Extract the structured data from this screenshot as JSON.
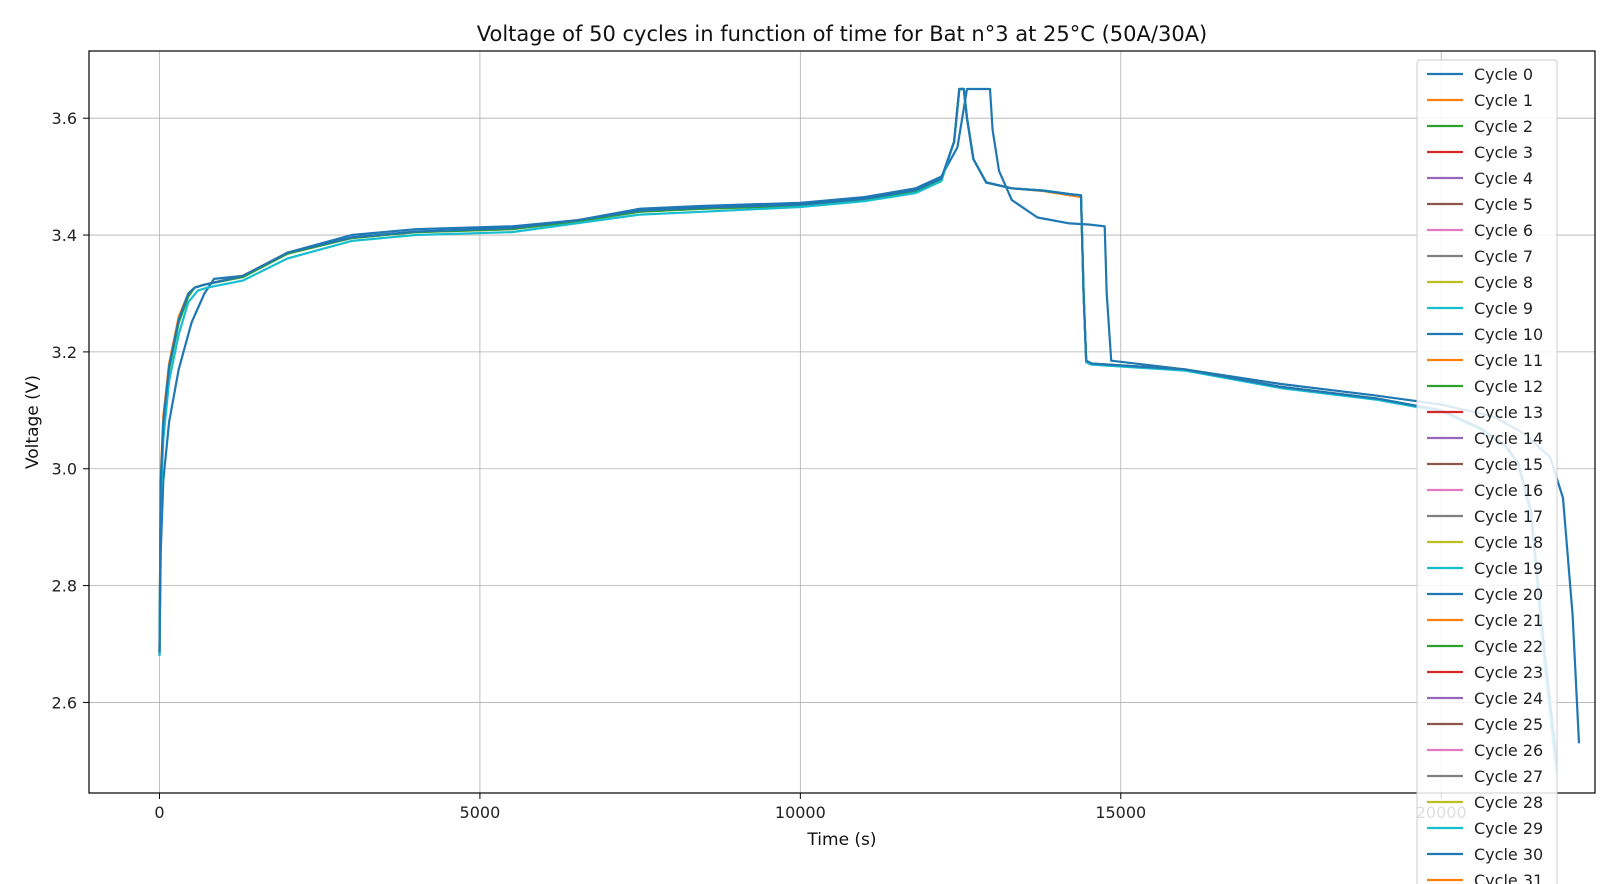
{
  "chart_data": {
    "type": "line",
    "title": "Voltage of 50 cycles in function of time for Bat n°3 at 25°C (50A/30A)",
    "xlabel": "Time (s)",
    "ylabel": "Voltage (V)",
    "xlim": [
      -1100,
      22400
    ],
    "ylim": [
      2.445,
      3.715
    ],
    "xticks": [
      0,
      5000,
      10000,
      15000,
      20000
    ],
    "xtick_labels": [
      "0",
      "5000",
      "10000",
      "15000",
      "20000"
    ],
    "yticks": [
      2.6,
      2.8,
      3.0,
      3.2,
      3.4,
      3.6
    ],
    "ytick_labels": [
      "2.6",
      "2.8",
      "3.0",
      "3.2",
      "3.4",
      "3.6"
    ],
    "grid": true,
    "legend_position": "upper-right",
    "palette": [
      "#1f77b4",
      "#ff7f0e",
      "#2ca02c",
      "#d62728",
      "#9467bd",
      "#8c564b",
      "#e377c2",
      "#7f7f7f",
      "#bcbd22",
      "#17becf"
    ],
    "legend_entries": [
      "Cycle 0",
      "Cycle 1",
      "Cycle 2",
      "Cycle 3",
      "Cycle 4",
      "Cycle 5",
      "Cycle 6",
      "Cycle 7",
      "Cycle 8",
      "Cycle 9",
      "Cycle 10",
      "Cycle 11",
      "Cycle 12",
      "Cycle 13",
      "Cycle 14",
      "Cycle 15",
      "Cycle 16",
      "Cycle 17",
      "Cycle 18",
      "Cycle 19",
      "Cycle 20",
      "Cycle 21",
      "Cycle 22",
      "Cycle 23",
      "Cycle 24",
      "Cycle 25",
      "Cycle 26",
      "Cycle 27",
      "Cycle 28",
      "Cycle 29",
      "Cycle 30",
      "Cycle 31"
    ],
    "series": [
      {
        "name": "Cycle 0",
        "color": "#1f77b4",
        "x": [
          0,
          20,
          60,
          150,
          300,
          500,
          700,
          850,
          1300,
          2000,
          3000,
          4000,
          5500,
          6500,
          7500,
          8500,
          10000,
          11000,
          11800,
          12200,
          12450,
          12600,
          12700,
          12800,
          12960,
          13000,
          13100,
          13300,
          13700,
          14200,
          14500,
          14750,
          14780,
          14850,
          16000,
          17500,
          19000,
          20000,
          20800,
          21300,
          21500,
          21700,
          21900,
          22050,
          22150
        ],
        "y": [
          2.68,
          2.86,
          2.98,
          3.08,
          3.17,
          3.25,
          3.3,
          3.325,
          3.33,
          3.37,
          3.4,
          3.41,
          3.415,
          3.425,
          3.445,
          3.45,
          3.455,
          3.465,
          3.48,
          3.5,
          3.55,
          3.65,
          3.65,
          3.65,
          3.65,
          3.58,
          3.51,
          3.46,
          3.43,
          3.42,
          3.418,
          3.415,
          3.3,
          3.185,
          3.17,
          3.145,
          3.125,
          3.11,
          3.09,
          3.06,
          3.04,
          3.02,
          2.95,
          2.75,
          2.53
        ]
      },
      {
        "name": "Cycle 1",
        "color": "#ff7f0e",
        "x": [
          0,
          20,
          60,
          150,
          300,
          450,
          550,
          700,
          1300,
          2000,
          3000,
          4000,
          5500,
          6500,
          7500,
          8500,
          10000,
          11000,
          11800,
          12200,
          12400,
          12480,
          12550,
          12600,
          12700,
          12900,
          13300,
          13800,
          14200,
          14380,
          14420,
          14460,
          14550,
          16000,
          17500,
          19000,
          20000,
          20600,
          21000,
          21200,
          21400,
          21600,
          21800
        ],
        "y": [
          2.69,
          2.99,
          3.09,
          3.18,
          3.26,
          3.3,
          3.31,
          3.315,
          3.33,
          3.37,
          3.395,
          3.405,
          3.41,
          3.425,
          3.44,
          3.445,
          3.45,
          3.46,
          3.475,
          3.495,
          3.56,
          3.65,
          3.65,
          3.6,
          3.53,
          3.49,
          3.48,
          3.475,
          3.468,
          3.465,
          3.3,
          3.185,
          3.18,
          3.17,
          3.14,
          3.12,
          3.1,
          3.07,
          3.04,
          3.01,
          2.93,
          2.7,
          2.5
        ]
      },
      {
        "name": "Cycle 2",
        "color": "#2ca02c",
        "x": [
          0,
          20,
          60,
          150,
          300,
          450,
          550,
          700,
          1300,
          2000,
          3000,
          4000,
          5500,
          6500,
          7500,
          8500,
          10000,
          11000,
          11800,
          12200,
          12400,
          12480,
          12550,
          12600,
          12700,
          12900,
          13300,
          13800,
          14200,
          14380,
          14420,
          14460,
          14550,
          16000,
          17500,
          19000,
          20000,
          20600,
          21000,
          21200,
          21400,
          21600,
          21800
        ],
        "y": [
          2.685,
          2.97,
          3.07,
          3.17,
          3.25,
          3.295,
          3.31,
          3.315,
          3.328,
          3.368,
          3.395,
          3.405,
          3.41,
          3.423,
          3.44,
          3.445,
          3.45,
          3.46,
          3.475,
          3.495,
          3.56,
          3.65,
          3.65,
          3.6,
          3.53,
          3.49,
          3.48,
          3.476,
          3.47,
          3.468,
          3.3,
          3.185,
          3.18,
          3.17,
          3.14,
          3.12,
          3.1,
          3.07,
          3.04,
          3.01,
          2.93,
          2.7,
          2.5
        ]
      },
      {
        "name": "Cycle 9",
        "color": "#17becf",
        "x": [
          0,
          20,
          60,
          150,
          300,
          450,
          600,
          750,
          1300,
          2000,
          3000,
          4000,
          5500,
          6500,
          7500,
          8500,
          10000,
          11000,
          11800,
          12200,
          12400,
          12480,
          12550,
          12600,
          12700,
          12900,
          13300,
          13800,
          14200,
          14380,
          14420,
          14460,
          14550,
          16000,
          17500,
          19000,
          20000,
          20600,
          21000,
          21200,
          21400,
          21600,
          21800
        ],
        "y": [
          2.68,
          2.95,
          3.05,
          3.15,
          3.23,
          3.285,
          3.305,
          3.31,
          3.322,
          3.36,
          3.39,
          3.4,
          3.405,
          3.42,
          3.435,
          3.44,
          3.448,
          3.458,
          3.472,
          3.492,
          3.56,
          3.65,
          3.65,
          3.6,
          3.53,
          3.49,
          3.48,
          3.476,
          3.47,
          3.468,
          3.3,
          3.182,
          3.178,
          3.168,
          3.138,
          3.118,
          3.098,
          3.068,
          3.038,
          3.008,
          2.92,
          2.68,
          2.48
        ]
      },
      {
        "name": "Cycle 10",
        "color": "#1f77b4",
        "x": [
          0,
          20,
          60,
          150,
          300,
          450,
          550,
          700,
          1300,
          2000,
          3000,
          4000,
          5500,
          6500,
          7500,
          8500,
          10000,
          11000,
          11800,
          12200,
          12400,
          12480,
          12550,
          12600,
          12700,
          12900,
          13300,
          13800,
          14200,
          14380,
          14420,
          14460,
          14550,
          16000,
          17500,
          19000,
          20000,
          20600,
          21000,
          21200,
          21400,
          21600,
          21800
        ],
        "y": [
          2.685,
          2.98,
          3.08,
          3.175,
          3.255,
          3.3,
          3.31,
          3.315,
          3.33,
          3.37,
          3.396,
          3.406,
          3.412,
          3.425,
          3.442,
          3.447,
          3.452,
          3.462,
          3.477,
          3.497,
          3.56,
          3.65,
          3.65,
          3.6,
          3.53,
          3.49,
          3.48,
          3.476,
          3.47,
          3.468,
          3.3,
          3.185,
          3.18,
          3.17,
          3.14,
          3.12,
          3.1,
          3.07,
          3.04,
          3.01,
          2.93,
          2.7,
          2.5
        ]
      }
    ]
  }
}
